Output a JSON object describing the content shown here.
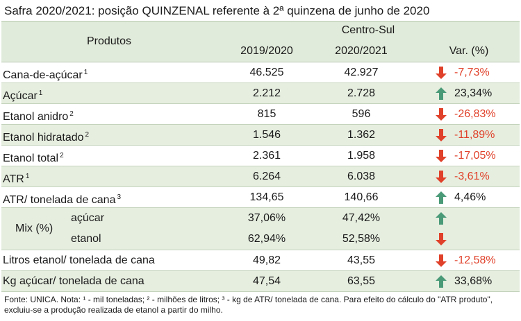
{
  "title": "Safra 2020/2021: posição QUINZENAL referente à 2ª quinzena de junho de 2020",
  "header": {
    "produtos": "Produtos",
    "centro_sul": "Centro-Sul",
    "col_2019": "2019/2020",
    "col_2020": "2020/2021",
    "col_var": "Var. (%)"
  },
  "rows": [
    {
      "label": "Cana-de-açúcar",
      "sup": "1",
      "v1": "46.525",
      "v2": "42.927",
      "var": "-7,73%",
      "dir": "down"
    },
    {
      "label": "Açúcar",
      "sup": "1",
      "v1": "2.212",
      "v2": "2.728",
      "var": "23,34%",
      "dir": "up"
    },
    {
      "label": "Etanol anidro",
      "sup": "2",
      "v1": "815",
      "v2": "596",
      "var": "-26,83%",
      "dir": "down"
    },
    {
      "label": "Etanol hidratado",
      "sup": "2",
      "v1": "1.546",
      "v2": "1.362",
      "var": "-11,89%",
      "dir": "down"
    },
    {
      "label": "Etanol total",
      "sup": "2",
      "v1": "2.361",
      "v2": "1.958",
      "var": "-17,05%",
      "dir": "down"
    },
    {
      "label": "ATR",
      "sup": "1",
      "v1": "6.264",
      "v2": "6.038",
      "var": "-3,61%",
      "dir": "down"
    },
    {
      "label": "ATR/ tonelada de cana",
      "sup": "3",
      "v1": "134,65",
      "v2": "140,66",
      "var": "4,46%",
      "dir": "up"
    }
  ],
  "mix": {
    "label": "Mix (%)",
    "acucar": {
      "label": "açúcar",
      "v1": "37,06%",
      "v2": "47,42%",
      "dir": "up"
    },
    "etanol": {
      "label": "etanol",
      "v1": "62,94%",
      "v2": "52,58%",
      "dir": "down"
    }
  },
  "rows2": [
    {
      "label": "Litros etanol/ tonelada de cana",
      "v1": "49,82",
      "v2": "43,55",
      "var": "-12,58%",
      "dir": "down"
    },
    {
      "label": "Kg açúcar/ tonelada de cana",
      "v1": "47,54",
      "v2": "63,55",
      "var": "33,68%",
      "dir": "up"
    }
  ],
  "footnote": "Fonte: UNICA. Nota: ¹ - mil toneladas; ² - milhões de litros; ³ - kg de ATR/ tonelada de cana. Para efeito do cálculo do \"ATR produto\", excluiu-se a produção realizada de etanol a partir do milho.",
  "colors": {
    "down": "#e0412a",
    "up": "#4a9a78",
    "header_bg": "#e1ebdb",
    "row_shade": "#e6eee0"
  }
}
